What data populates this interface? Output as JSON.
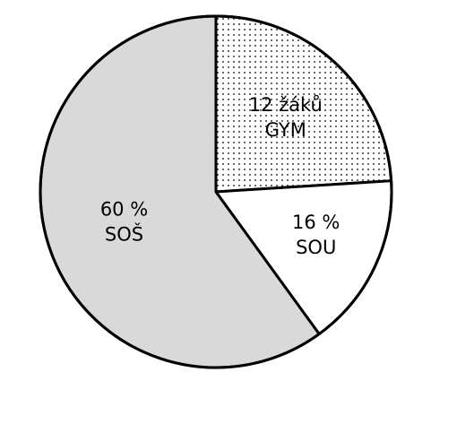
{
  "chart_data": {
    "type": "pie",
    "start_angle_deg": 0,
    "direction": "clockwise",
    "slices": [
      {
        "label_lines": [
          "12 žáků",
          "GYM"
        ],
        "value": 24,
        "fill": "dots"
      },
      {
        "label_lines": [
          "16 %",
          "SOU"
        ],
        "value": 16,
        "fill": "#ffffff"
      },
      {
        "label_lines": [
          "60 %",
          "SOŠ"
        ],
        "value": 60,
        "fill": "#d9d9d9"
      }
    ],
    "colors": {
      "stroke": "#000000",
      "dots": "#000000",
      "background": "#ffffff"
    }
  }
}
